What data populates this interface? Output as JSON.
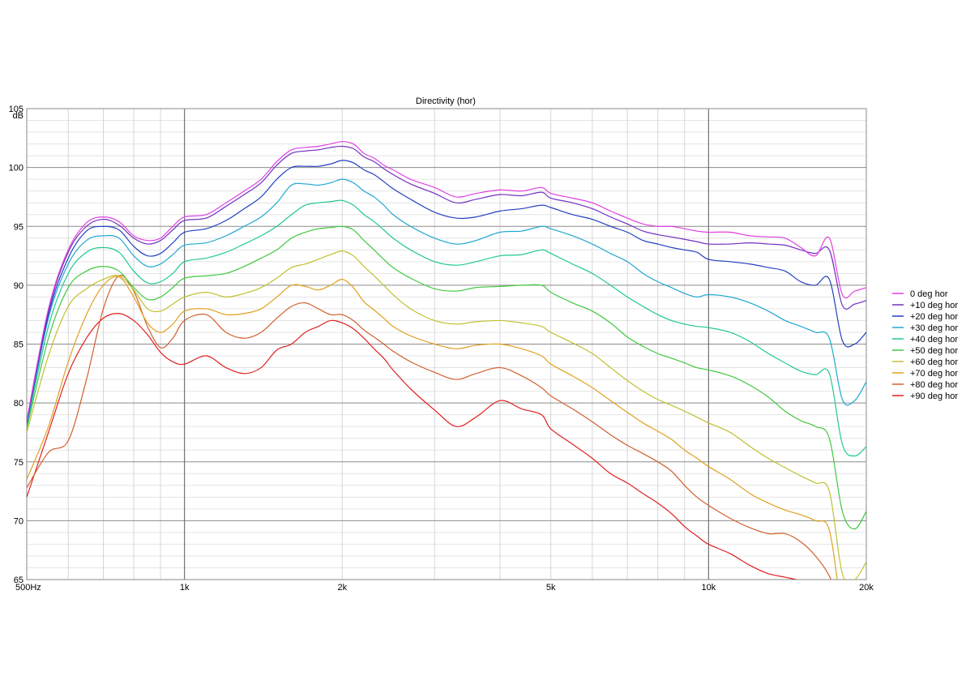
{
  "chart_data": {
    "type": "line",
    "title": "Directivity (hor)",
    "ylabel": "dB",
    "xlabel": "",
    "xscale": "log",
    "xlim": [
      500,
      20000
    ],
    "ylim": [
      65,
      105
    ],
    "grid": true,
    "legend_position": "right",
    "y_ticks": [
      {
        "value": 105,
        "label": "105"
      },
      {
        "value": 100,
        "label": "100"
      },
      {
        "value": 95,
        "label": "95"
      },
      {
        "value": 90,
        "label": "90"
      },
      {
        "value": 85,
        "label": "85"
      },
      {
        "value": 80,
        "label": "80"
      },
      {
        "value": 75,
        "label": "75"
      },
      {
        "value": 70,
        "label": "70"
      },
      {
        "value": 65,
        "label": "65"
      }
    ],
    "x_ticks": [
      {
        "value": 500,
        "label": "500Hz"
      },
      {
        "value": 1000,
        "label": "1k"
      },
      {
        "value": 2000,
        "label": "2k"
      },
      {
        "value": 5000,
        "label": "5k"
      },
      {
        "value": 10000,
        "label": "10k"
      },
      {
        "value": 20000,
        "label": "20k"
      }
    ],
    "x": [
      500,
      550,
      600,
      650,
      700,
      750,
      800,
      850,
      900,
      950,
      1000,
      1100,
      1200,
      1300,
      1400,
      1500,
      1600,
      1700,
      1800,
      1900,
      2000,
      2100,
      2200,
      2300,
      2400,
      2500,
      2700,
      3000,
      3300,
      3600,
      4000,
      4400,
      4800,
      5000,
      5500,
      6000,
      6500,
      7000,
      7500,
      8000,
      8500,
      9000,
      9500,
      10000,
      11000,
      12000,
      13000,
      14000,
      15000,
      16000,
      17000,
      18000,
      19000,
      20000
    ],
    "series": [
      {
        "name": "0 deg hor",
        "color": "#e040e0",
        "values": [
          78.5,
          88,
          93,
          95.3,
          95.8,
          95.4,
          94.2,
          93.8,
          94.0,
          95.0,
          95.8,
          96.0,
          97.0,
          98.0,
          99.0,
          100.5,
          101.5,
          101.7,
          101.8,
          102.0,
          102.2,
          102.0,
          101.2,
          100.8,
          100.2,
          99.8,
          99.0,
          98.3,
          97.5,
          97.8,
          98.1,
          98.0,
          98.3,
          97.8,
          97.4,
          97.0,
          96.3,
          95.7,
          95.2,
          95.0,
          95.0,
          94.8,
          94.6,
          94.5,
          94.5,
          94.2,
          94.1,
          94.0,
          93.2,
          92.5,
          94.0,
          89.2,
          89.5,
          89.8
        ]
      },
      {
        "name": "+10 deg hor",
        "color": "#7030c0",
        "values": [
          78.4,
          87.8,
          92.8,
          95.0,
          95.6,
          95.1,
          94.0,
          93.5,
          93.8,
          94.7,
          95.5,
          95.7,
          96.7,
          97.7,
          98.7,
          100.2,
          101.2,
          101.4,
          101.5,
          101.7,
          101.8,
          101.6,
          100.9,
          100.5,
          99.9,
          99.4,
          98.6,
          97.8,
          97.0,
          97.3,
          97.7,
          97.6,
          97.9,
          97.4,
          97.0,
          96.5,
          95.8,
          95.2,
          94.6,
          94.3,
          94.1,
          93.9,
          93.7,
          93.5,
          93.5,
          93.6,
          93.5,
          93.4,
          93.0,
          92.7,
          93.0,
          88.3,
          88.4,
          88.7
        ]
      },
      {
        "name": "+20 deg hor",
        "color": "#2040c0",
        "values": [
          78.3,
          87.5,
          92.3,
          94.6,
          95.0,
          94.7,
          93.3,
          92.5,
          92.7,
          93.6,
          94.5,
          94.8,
          95.5,
          96.5,
          97.5,
          99.0,
          100.0,
          100.1,
          100.1,
          100.3,
          100.6,
          100.4,
          99.8,
          99.4,
          98.8,
          98.2,
          97.3,
          96.2,
          95.7,
          95.8,
          96.3,
          96.5,
          96.8,
          96.6,
          96.0,
          95.6,
          95.0,
          94.5,
          93.8,
          93.5,
          93.2,
          93.0,
          92.8,
          92.2,
          92.0,
          91.8,
          91.5,
          91.2,
          90.3,
          90.0,
          90.5,
          85.3,
          85.0,
          86.0
        ]
      },
      {
        "name": "+30 deg hor",
        "color": "#20a8d0",
        "values": [
          78.2,
          87.2,
          91.8,
          93.8,
          94.2,
          94.0,
          92.5,
          91.6,
          91.8,
          92.6,
          93.4,
          93.6,
          94.2,
          95.0,
          95.8,
          97.0,
          98.5,
          98.6,
          98.5,
          98.7,
          99.0,
          98.7,
          98.0,
          97.5,
          96.8,
          96.0,
          95.0,
          94.0,
          93.5,
          93.8,
          94.5,
          94.6,
          95.0,
          94.8,
          94.2,
          93.5,
          92.7,
          92.0,
          91.0,
          90.3,
          89.8,
          89.3,
          89.0,
          89.2,
          89.0,
          88.5,
          87.8,
          87.0,
          86.5,
          86.0,
          85.5,
          80.3,
          80.2,
          81.8
        ]
      },
      {
        "name": "+40 deg hor",
        "color": "#20c890",
        "values": [
          78.0,
          86.5,
          91.0,
          92.8,
          93.2,
          92.8,
          91.2,
          90.2,
          90.3,
          91.0,
          92.0,
          92.3,
          92.8,
          93.5,
          94.2,
          95.0,
          96.0,
          96.8,
          97.0,
          97.1,
          97.2,
          96.8,
          96.0,
          95.4,
          94.7,
          94.0,
          93.0,
          92.0,
          91.7,
          92.0,
          92.5,
          92.6,
          93.0,
          92.7,
          91.8,
          91.0,
          90.0,
          89.0,
          88.2,
          87.5,
          87.0,
          86.7,
          86.5,
          86.4,
          86.0,
          85.2,
          84.2,
          83.4,
          82.7,
          82.4,
          82.5,
          76.5,
          75.5,
          76.3
        ]
      },
      {
        "name": "+50 deg hor",
        "color": "#40c840",
        "values": [
          77.8,
          85.5,
          89.8,
          91.2,
          91.6,
          91.2,
          89.8,
          88.8,
          89.0,
          89.8,
          90.6,
          90.8,
          91.0,
          91.6,
          92.3,
          93.0,
          94.0,
          94.5,
          94.8,
          94.9,
          95.0,
          94.7,
          93.8,
          93.0,
          92.2,
          91.5,
          90.6,
          89.7,
          89.5,
          89.8,
          89.9,
          90.0,
          90.0,
          89.4,
          88.5,
          87.8,
          86.8,
          85.6,
          84.8,
          84.2,
          83.8,
          83.4,
          83.0,
          82.8,
          82.3,
          81.5,
          80.5,
          79.3,
          78.5,
          78.0,
          77.0,
          70.8,
          69.3,
          70.8
        ]
      },
      {
        "name": "+60 deg hor",
        "color": "#c0c030",
        "values": [
          77.5,
          84.0,
          88.2,
          89.7,
          90.5,
          90.8,
          89.6,
          88.0,
          87.8,
          88.4,
          89.0,
          89.4,
          89.0,
          89.3,
          89.8,
          90.6,
          91.5,
          91.8,
          92.2,
          92.6,
          92.9,
          92.5,
          91.6,
          90.8,
          90.0,
          89.2,
          88.0,
          87.0,
          86.7,
          86.9,
          87.0,
          86.8,
          86.5,
          86.0,
          85.1,
          84.2,
          83.0,
          81.9,
          81.0,
          80.3,
          79.8,
          79.3,
          78.8,
          78.3,
          77.5,
          76.3,
          75.3,
          74.5,
          73.8,
          73.2,
          72.5,
          65.5,
          65.0,
          66.5
        ]
      },
      {
        "name": "+70 deg hor",
        "color": "#e0a020",
        "values": [
          73.5,
          78.0,
          83.5,
          87.5,
          90.0,
          90.7,
          89.0,
          86.8,
          86.0,
          86.7,
          87.8,
          88.0,
          87.5,
          87.6,
          88.0,
          89.0,
          90.0,
          89.9,
          89.6,
          90.0,
          90.5,
          89.8,
          88.6,
          87.9,
          87.2,
          86.5,
          85.7,
          85.0,
          84.6,
          84.9,
          85.0,
          84.6,
          84.0,
          83.3,
          82.3,
          81.3,
          80.2,
          79.2,
          78.3,
          77.6,
          76.9,
          76.0,
          75.3,
          74.6,
          73.5,
          72.3,
          71.5,
          70.9,
          70.5,
          70.0,
          69.2,
          62.5,
          62.5,
          62.5
        ]
      },
      {
        "name": "+80 deg hor",
        "color": "#d06030",
        "values": [
          72.8,
          75.8,
          76.8,
          82.0,
          88.0,
          90.8,
          89.5,
          86.5,
          84.7,
          85.5,
          87.0,
          87.5,
          86.0,
          85.5,
          86.0,
          87.2,
          88.2,
          88.5,
          88.0,
          87.5,
          87.5,
          87.0,
          86.2,
          85.6,
          85.0,
          84.4,
          83.5,
          82.6,
          82.0,
          82.5,
          83.0,
          82.3,
          81.3,
          80.6,
          79.5,
          78.4,
          77.3,
          76.4,
          75.7,
          75.0,
          74.2,
          73.0,
          72.0,
          71.3,
          70.2,
          69.4,
          68.9,
          68.9,
          68.2,
          67.0,
          65.3,
          62.5,
          62.5,
          62.5
        ]
      },
      {
        "name": "+90 deg hor",
        "color": "#e02020",
        "values": [
          72.0,
          77.5,
          82.5,
          85.5,
          87.2,
          87.6,
          87.0,
          85.8,
          84.3,
          83.5,
          83.3,
          84.0,
          83.0,
          82.5,
          83.0,
          84.5,
          85.0,
          86.0,
          86.5,
          87.0,
          86.8,
          86.3,
          85.5,
          84.6,
          83.8,
          82.8,
          81.2,
          79.4,
          78.0,
          78.8,
          80.2,
          79.5,
          79.0,
          77.8,
          76.5,
          75.3,
          74.0,
          73.2,
          72.3,
          71.5,
          70.6,
          69.5,
          68.7,
          68.0,
          67.2,
          66.2,
          65.5,
          65.2,
          64.8,
          63.5,
          62.5,
          62.5,
          62.5,
          62.5
        ]
      }
    ]
  }
}
